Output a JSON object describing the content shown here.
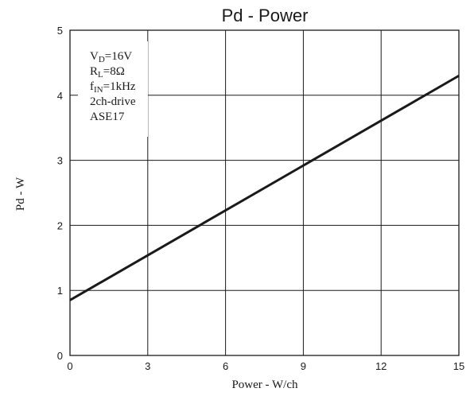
{
  "chart_data": {
    "type": "line",
    "title": "Pd  -  Power",
    "xlabel": "Power - W/ch",
    "ylabel": "Pd - W",
    "xlim": [
      0,
      15
    ],
    "ylim": [
      0,
      5
    ],
    "x_ticks": [
      "0",
      "3",
      "6",
      "9",
      "12",
      "15"
    ],
    "y_ticks": [
      "0",
      "1",
      "2",
      "3",
      "4",
      "5"
    ],
    "grid": true,
    "series": [
      {
        "x": [
          0,
          15
        ],
        "y": [
          0.85,
          4.3
        ]
      }
    ],
    "annotation": {
      "vd": {
        "main": "V",
        "sub": "D",
        "rest": "=16V"
      },
      "rl": {
        "main": "R",
        "sub": "L",
        "rest": "=8Ω"
      },
      "fin": {
        "main": "f",
        "sub": "IN",
        "rest": "=1kHz"
      },
      "drive": "2ch-drive",
      "model": "ASE17"
    }
  }
}
